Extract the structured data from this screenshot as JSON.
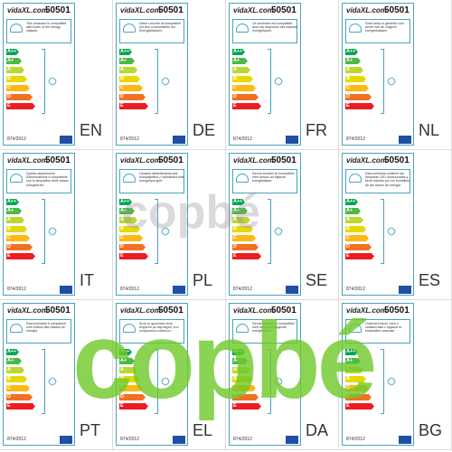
{
  "brand": "vidaXL.com",
  "code": "50501",
  "regulation": "874/2012",
  "classes": [
    "A++",
    "A+",
    "A",
    "B",
    "C",
    "D",
    "E"
  ],
  "labels": [
    {
      "text": "This luminaire is compatible with bulbs of the energy classes:",
      "lang": "EN"
    },
    {
      "text": "Diese Leuchte ist kompatibel mit den Leuchtmitteln der Energieklassen:",
      "lang": "DE"
    },
    {
      "text": "Ce luminaire est compatible avec les ampoules des classes énergétiques:",
      "lang": "FR"
    },
    {
      "text": "Deze lamp is geschikt voor peren van de volgend energieklassen",
      "lang": "NL"
    },
    {
      "text": "Questo apparecchio d'illuminazione è compatibile con le lampadine delle classe energetiche:",
      "lang": "IT"
    },
    {
      "text": "Oprawa oświetleniowa jest kompatybilna z żarówkami klas energetycznych:",
      "lang": "PL"
    },
    {
      "text": "Denna armatur är kompatibel med lampor av följande energiklasser:",
      "lang": "SE"
    },
    {
      "text": "Esta luminaria contiene las lámparas LED incorporadas y tiene incluido por los bombillos de las clases de energía",
      "lang": "ES"
    },
    {
      "text": "Esta luminária é compatível com bulbos das classes de energia",
      "lang": "PT"
    },
    {
      "text": "Αυτό το φωτιστικό είναι συμβατό με λαμπτήρες των ενεργειακών κλάσεων:",
      "lang": "EL"
    },
    {
      "text": "Denne armatur er kompatibel med lamper af følgende energiklasser:",
      "lang": "DA"
    },
    {
      "text": "Осветителното тяло е съвместимо с крушки от енергийни класове:",
      "lang": "BG"
    }
  ],
  "watermarks": [
    "copbé",
    "copbé"
  ]
}
